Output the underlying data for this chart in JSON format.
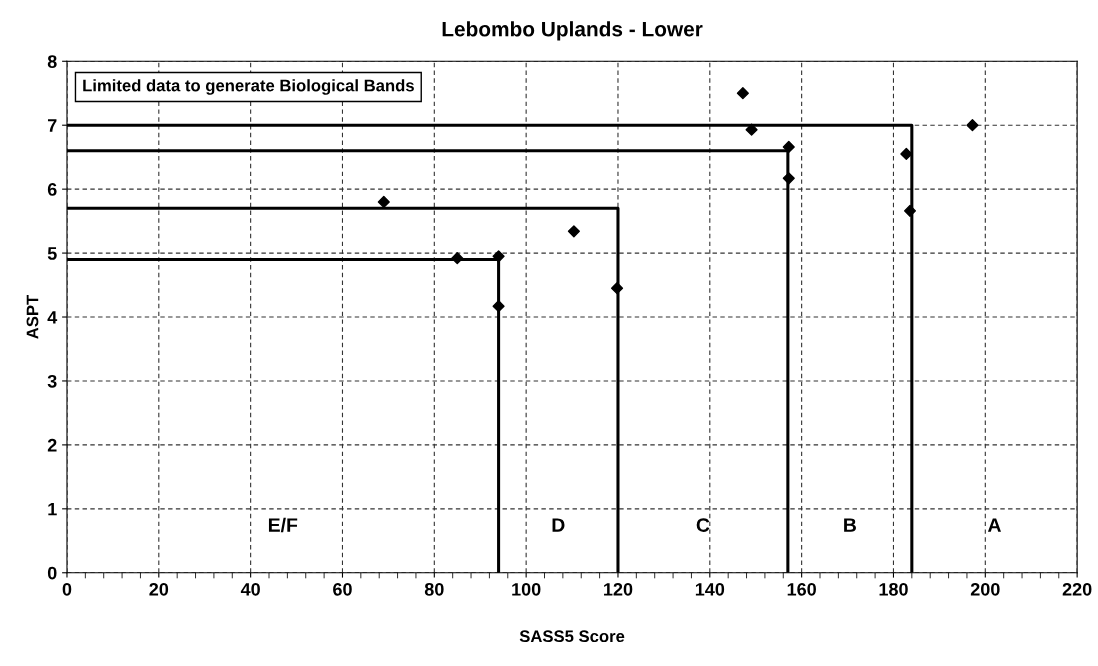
{
  "chart_data": {
    "type": "scatter",
    "title": "Lebombo Uplands - Lower",
    "xlabel": "SASS5 Score",
    "ylabel": "ASPT",
    "xlim": [
      0,
      220
    ],
    "xticks": [
      0,
      20,
      40,
      60,
      80,
      100,
      120,
      140,
      160,
      180,
      200,
      220
    ],
    "ylim": [
      0,
      8
    ],
    "yticks": [
      0,
      1,
      2,
      3,
      4,
      5,
      6,
      7,
      8
    ],
    "grid": true,
    "marker": "diamond",
    "legend": false,
    "series": [
      {
        "color": "#000000",
        "x": [
          69,
          85,
          94,
          94,
          110.4,
          119.8,
          147.2,
          149.1,
          157.2,
          157.2,
          182.8,
          183.6,
          197.2
        ],
        "values": [
          5.8,
          4.92,
          4.95,
          4.17,
          5.34,
          4.45,
          7.5,
          6.93,
          6.66,
          6.17,
          6.55,
          5.66,
          7.0
        ]
      },
      {
        "type": "line",
        "color": "#000000",
        "marker": "none",
        "x": [
          0,
          94,
          94
        ],
        "values": [
          4.9,
          4.9,
          0
        ]
      },
      {
        "type": "line",
        "color": "#000000",
        "marker": "none",
        "x": [
          0,
          120,
          120
        ],
        "values": [
          5.7,
          5.7,
          0
        ]
      },
      {
        "type": "line",
        "color": "#000000",
        "marker": "none",
        "x": [
          0,
          157,
          157
        ],
        "values": [
          6.6,
          6.6,
          0
        ]
      },
      {
        "type": "line",
        "color": "#000000",
        "marker": "none",
        "x": [
          0,
          184,
          184
        ],
        "values": [
          7.0,
          7.0,
          0
        ]
      }
    ],
    "annotations": [
      "E/F",
      "D",
      "C",
      "B",
      "A",
      "Limited data to generate Biological Bands"
    ]
  }
}
